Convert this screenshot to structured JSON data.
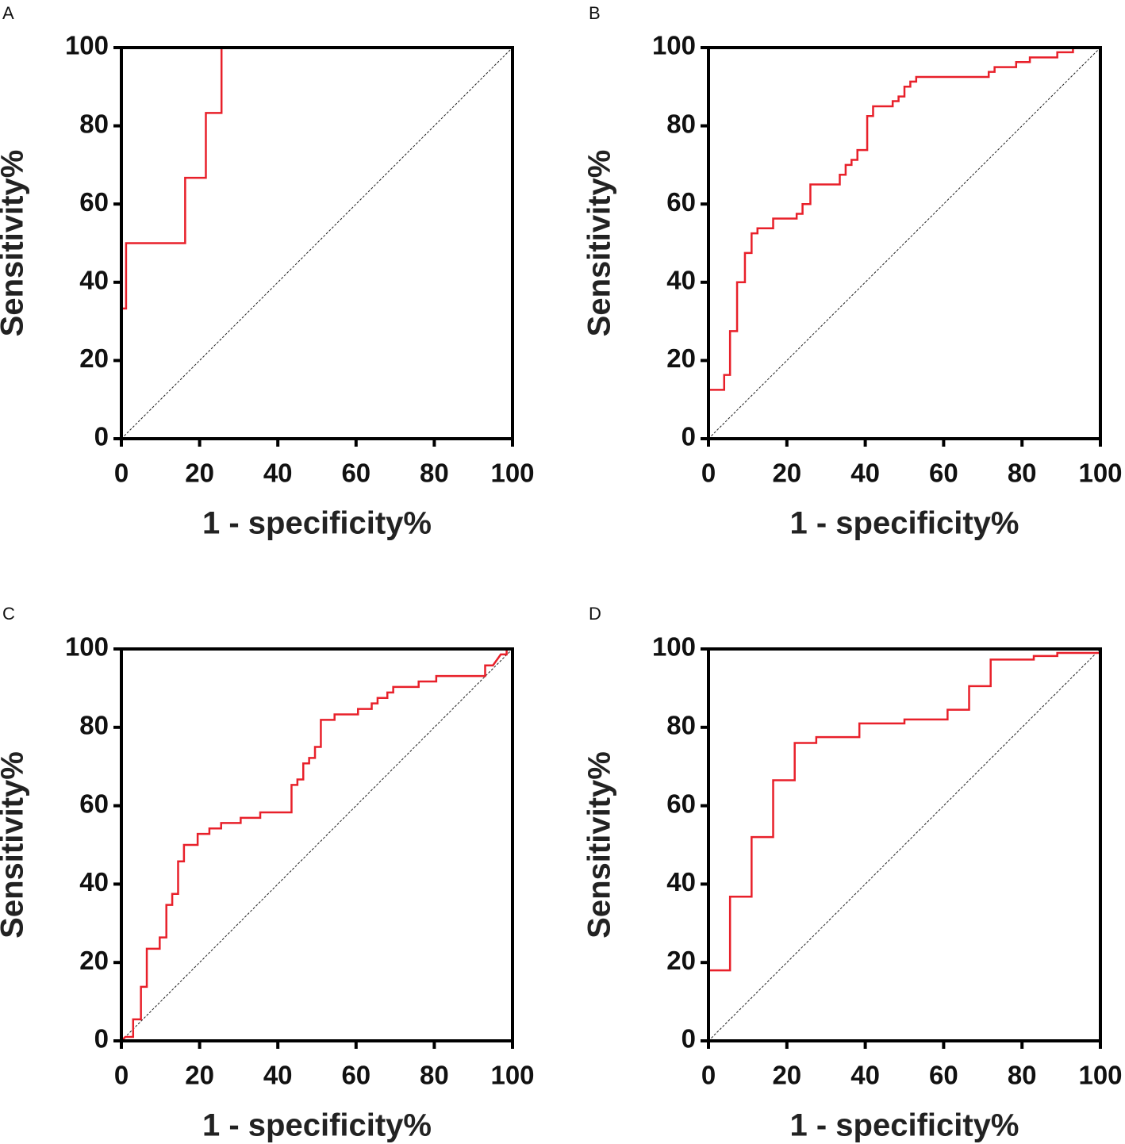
{
  "chart_data": [
    {
      "type": "line",
      "panel": "A",
      "xlabel": "1 - specificity%",
      "ylabel": "Sensitivity%",
      "color": "#e8202a",
      "xlim": [
        0,
        100
      ],
      "ylim": [
        0,
        100
      ],
      "xticks": [
        0,
        20,
        40,
        60,
        80,
        100
      ],
      "yticks": [
        0,
        20,
        40,
        60,
        80,
        100
      ],
      "x": [
        0,
        0,
        1.2,
        1.2,
        16.3,
        16.3,
        21.6,
        21.6,
        25.6,
        25.6,
        100
      ],
      "values": [
        0,
        33.3,
        33.3,
        50,
        50,
        66.7,
        66.7,
        83.3,
        83.3,
        100,
        100
      ]
    },
    {
      "type": "line",
      "panel": "B",
      "xlabel": "1 - specificity%",
      "ylabel": "Sensitivity%",
      "color": "#e8202a",
      "xlim": [
        0,
        100
      ],
      "ylim": [
        0,
        100
      ],
      "xticks": [
        0,
        20,
        40,
        60,
        80,
        100
      ],
      "yticks": [
        0,
        20,
        40,
        60,
        80,
        100
      ],
      "x": [
        0,
        0,
        4,
        4,
        5.5,
        5.5,
        7.3,
        7.3,
        9.3,
        9.3,
        11,
        11,
        12.5,
        12.5,
        16.5,
        16.5,
        22.5,
        22.5,
        24,
        24,
        26,
        26,
        33.5,
        33.5,
        35,
        35,
        36.5,
        36.5,
        38,
        38,
        40.5,
        40.5,
        42,
        42,
        47,
        47,
        48.5,
        48.5,
        50,
        50,
        51.5,
        51.5,
        53,
        53,
        71.5,
        71.5,
        73,
        73,
        78.5,
        78.5,
        82,
        82,
        89,
        89,
        93,
        93,
        100
      ],
      "values": [
        0,
        12.5,
        12.5,
        16.3,
        16.3,
        27.5,
        27.5,
        40,
        40,
        47.5,
        47.5,
        52.5,
        52.5,
        53.8,
        53.8,
        56.3,
        56.3,
        57.5,
        57.5,
        60,
        60,
        65,
        65,
        67.5,
        67.5,
        70,
        70,
        71.3,
        71.3,
        73.8,
        73.8,
        82.5,
        82.5,
        85,
        85,
        86.3,
        86.3,
        87.5,
        87.5,
        90,
        90,
        91.3,
        91.3,
        92.5,
        92.5,
        93.8,
        93.8,
        95,
        95,
        96.3,
        96.3,
        97.5,
        97.5,
        98.8,
        98.8,
        100,
        100
      ]
    },
    {
      "type": "line",
      "panel": "C",
      "xlabel": "1 - specificity%",
      "ylabel": "Sensitivity%",
      "color": "#e8202a",
      "xlim": [
        0,
        100
      ],
      "ylim": [
        0,
        100
      ],
      "xticks": [
        0,
        20,
        40,
        60,
        80,
        100
      ],
      "yticks": [
        0,
        20,
        40,
        60,
        80,
        100
      ],
      "x": [
        0,
        1,
        3,
        3,
        5,
        5,
        6.5,
        6.5,
        9.8,
        9.8,
        11.5,
        11.5,
        13,
        13,
        14.5,
        14.5,
        16,
        16,
        19.5,
        19.5,
        22.5,
        22.5,
        25.5,
        25.5,
        30.5,
        30.5,
        35.5,
        35.5,
        43.5,
        43.5,
        45,
        45,
        46.5,
        46.5,
        48,
        48,
        49.5,
        49.5,
        51,
        51,
        54.5,
        54.5,
        60.5,
        60.5,
        64,
        64,
        65.5,
        65.5,
        68,
        68,
        69.5,
        69.5,
        76,
        76,
        80.5,
        80.5,
        93,
        93,
        95,
        97,
        98.5,
        98.5,
        100
      ],
      "values": [
        0,
        1,
        1,
        5.5,
        5.5,
        13.8,
        13.8,
        23.5,
        23.5,
        26.4,
        26.4,
        34.7,
        34.7,
        37.5,
        37.5,
        45.8,
        45.8,
        50,
        50,
        52.8,
        52.8,
        54.2,
        54.2,
        55.6,
        55.6,
        56.9,
        56.9,
        58.3,
        58.3,
        65.3,
        65.3,
        66.7,
        66.7,
        70.8,
        70.8,
        72.2,
        72.2,
        75,
        75,
        81.9,
        81.9,
        83.3,
        83.3,
        84.7,
        84.7,
        86.1,
        86.1,
        87.5,
        87.5,
        88.9,
        88.9,
        90.3,
        90.3,
        91.7,
        91.7,
        93.1,
        93.1,
        95.8,
        95.8,
        98.6,
        98.6,
        100,
        100
      ]
    },
    {
      "type": "line",
      "panel": "D",
      "xlabel": "1 - specificity%",
      "ylabel": "Sensitivity%",
      "color": "#e8202a",
      "xlim": [
        0,
        100
      ],
      "ylim": [
        0,
        100
      ],
      "xticks": [
        0,
        20,
        40,
        60,
        80,
        100
      ],
      "yticks": [
        0,
        20,
        40,
        60,
        80,
        100
      ],
      "x": [
        0,
        0,
        5.5,
        5.5,
        11,
        11,
        16.5,
        16.5,
        22,
        22,
        27.5,
        27.5,
        38.5,
        38.5,
        50,
        50,
        61,
        61,
        66.5,
        66.5,
        72,
        72,
        83,
        83,
        89,
        89,
        100,
        100
      ],
      "values": [
        0,
        18,
        18,
        36.8,
        36.8,
        52,
        52,
        66.5,
        66.5,
        76,
        76,
        77.5,
        77.5,
        81,
        81,
        82,
        82,
        84.5,
        84.5,
        90.5,
        90.5,
        97.3,
        97.3,
        98.2,
        98.2,
        99,
        99,
        100
      ]
    }
  ]
}
